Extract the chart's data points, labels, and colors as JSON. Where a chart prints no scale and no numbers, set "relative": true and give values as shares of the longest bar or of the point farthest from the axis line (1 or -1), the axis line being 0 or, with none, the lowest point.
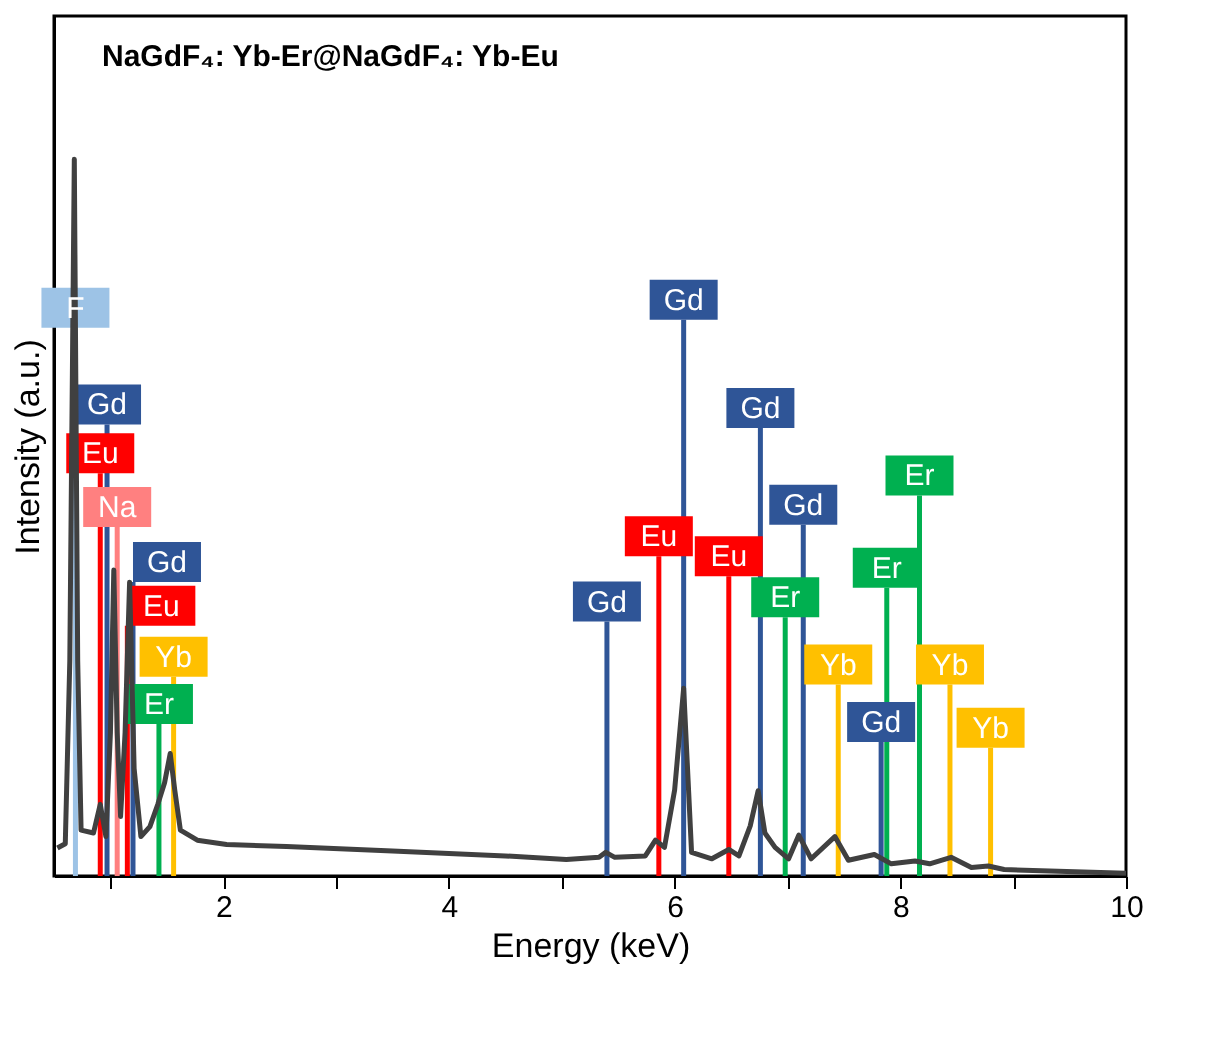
{
  "chart_data": {
    "type": "line",
    "relative": true,
    "title": "NaGdF₄: Yb-Er@NaGdF₄: Yb-Eu",
    "xlabel": "Energy (keV)",
    "ylabel": "Intensity (a.u.)",
    "xlim": [
      0.5,
      10
    ],
    "xticks": [
      {
        "value": 1,
        "label": null
      },
      2,
      {
        "value": 3,
        "label": null
      },
      4,
      {
        "value": 5,
        "label": null
      },
      6,
      {
        "value": 7,
        "label": null
      },
      8,
      {
        "value": 9,
        "label": null
      },
      10
    ],
    "grid": false,
    "marker": "none",
    "line_style": "solid",
    "series": [
      {
        "color": "#404040",
        "x": [
          0.53,
          0.6,
          0.64,
          0.68,
          0.71,
          0.74,
          0.85,
          0.91,
          0.96,
          1.0,
          1.03,
          1.06,
          1.09,
          1.13,
          1.17,
          1.21,
          1.27,
          1.35,
          1.42,
          1.48,
          1.53,
          1.57,
          1.62,
          1.77,
          2.03,
          2.56,
          3.5,
          4.5,
          5.04,
          5.33,
          5.39,
          5.47,
          5.74,
          5.83,
          5.91,
          6.0,
          6.08,
          6.15,
          6.33,
          6.48,
          6.57,
          6.67,
          6.74,
          6.8,
          6.89,
          7.01,
          7.1,
          7.21,
          7.42,
          7.54,
          7.77,
          7.92,
          8.13,
          8.26,
          8.45,
          8.63,
          8.78,
          8.92,
          10.0
        ],
        "values": [
          0.039,
          0.045,
          0.3,
          1.0,
          0.3,
          0.064,
          0.06,
          0.1,
          0.055,
          0.2,
          0.427,
          0.2,
          0.083,
          0.2,
          0.41,
          0.15,
          0.055,
          0.069,
          0.1,
          0.13,
          0.171,
          0.12,
          0.064,
          0.05,
          0.044,
          0.041,
          0.035,
          0.028,
          0.023,
          0.026,
          0.033,
          0.026,
          0.028,
          0.05,
          0.04,
          0.12,
          0.262,
          0.033,
          0.024,
          0.037,
          0.028,
          0.07,
          0.119,
          0.06,
          0.04,
          0.024,
          0.057,
          0.024,
          0.055,
          0.022,
          0.03,
          0.017,
          0.021,
          0.017,
          0.026,
          0.012,
          0.014,
          0.009,
          0.004
        ]
      }
    ],
    "ref_lines": [
      {
        "axis": "x",
        "value": 0.69,
        "label": "F",
        "color": "#9dc3e6"
      },
      {
        "axis": "x",
        "value": 0.97,
        "label": "Gd",
        "color": "#2f5597"
      },
      {
        "axis": "x",
        "value": 0.91,
        "label": "Eu",
        "color": "#ff0000"
      },
      {
        "axis": "x",
        "value": 1.06,
        "label": "Na",
        "color": "#ff8080"
      },
      {
        "axis": "x",
        "value": 1.2,
        "label": "Gd",
        "color": "#2f5597"
      },
      {
        "axis": "x",
        "value": 1.15,
        "label": "Eu",
        "color": "#ff0000"
      },
      {
        "axis": "x",
        "value": 1.56,
        "label": "Yb",
        "color": "#ffc000"
      },
      {
        "axis": "x",
        "value": 1.43,
        "label": "Er",
        "color": "#00b050"
      },
      {
        "axis": "x",
        "value": 5.4,
        "label": "Gd",
        "color": "#2f5597"
      },
      {
        "axis": "x",
        "value": 5.86,
        "label": "Eu",
        "color": "#ff0000"
      },
      {
        "axis": "x",
        "value": 6.08,
        "label": "Gd",
        "color": "#2f5597"
      },
      {
        "axis": "x",
        "value": 6.48,
        "label": "Eu",
        "color": "#ff0000"
      },
      {
        "axis": "x",
        "value": 6.76,
        "label": "Gd",
        "color": "#2f5597"
      },
      {
        "axis": "x",
        "value": 6.98,
        "label": "Er",
        "color": "#00b050"
      },
      {
        "axis": "x",
        "value": 7.14,
        "label": "Gd",
        "color": "#2f5597"
      },
      {
        "axis": "x",
        "value": 7.45,
        "label": "Yb",
        "color": "#ffc000"
      },
      {
        "axis": "x",
        "value": 7.83,
        "label": "Gd",
        "color": "#2f5597"
      },
      {
        "axis": "x",
        "value": 7.88,
        "label": "Er",
        "color": "#00b050"
      },
      {
        "axis": "x",
        "value": 8.17,
        "label": "Er",
        "color": "#00b050"
      },
      {
        "axis": "x",
        "value": 8.44,
        "label": "Yb",
        "color": "#ffc000"
      },
      {
        "axis": "x",
        "value": 8.8,
        "label": "Yb",
        "color": "#ffc000"
      }
    ]
  }
}
